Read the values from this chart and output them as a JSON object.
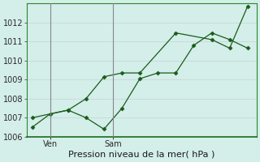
{
  "xlabel": "Pression niveau de la mer( hPa )",
  "background_color": "#d4eeea",
  "grid_color": "#c8d8d8",
  "line_color": "#1a5c1a",
  "vline_color": "#888888",
  "y_line1_x": [
    0,
    1,
    2,
    3,
    4,
    5,
    6,
    7,
    8,
    9,
    10,
    11,
    12
  ],
  "y_line1_y": [
    1006.5,
    1007.2,
    1007.4,
    1007.0,
    1006.4,
    1007.5,
    1009.05,
    1009.35,
    1009.35,
    1010.8,
    1011.45,
    1011.1,
    1010.65
  ],
  "y_line2_x": [
    0,
    2,
    3,
    4,
    5,
    6,
    8,
    10,
    11,
    12
  ],
  "y_line2_y": [
    1007.0,
    1007.4,
    1008.0,
    1009.15,
    1009.35,
    1009.35,
    1011.45,
    1011.1,
    1010.65,
    1012.85
  ],
  "ylim_min": 1006,
  "ylim_max": 1013,
  "yticks": [
    1006,
    1007,
    1008,
    1009,
    1010,
    1011,
    1012
  ],
  "xlim_min": -0.3,
  "xlim_max": 12.5,
  "vline1_x": 1.0,
  "vline2_x": 4.5,
  "ven_label": "Ven",
  "sam_label": "Sam",
  "label_fontsize": 7,
  "xlabel_fontsize": 8
}
